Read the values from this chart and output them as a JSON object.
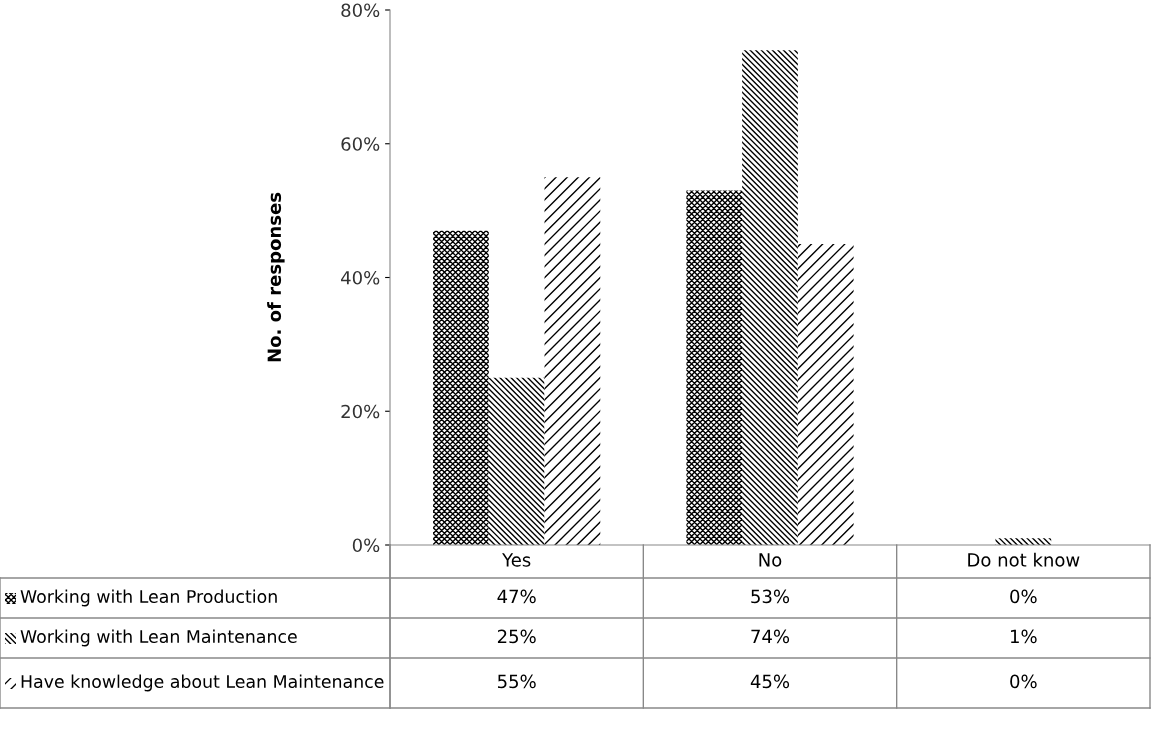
{
  "chart_data": {
    "type": "bar",
    "ylabel": "No. of responses",
    "categories": [
      "Yes",
      "No",
      "Do not know"
    ],
    "series": [
      {
        "name": "Working with Lean Production",
        "color": "#000000",
        "values": [
          47,
          53,
          0
        ],
        "value_labels": [
          "47%",
          "53%",
          "0%"
        ]
      },
      {
        "name": "Working with Lean Maintenance",
        "color": "#000000",
        "values": [
          25,
          74,
          1
        ],
        "value_labels": [
          "25%",
          "74%",
          "1%"
        ]
      },
      {
        "name": "Have knowledge about Lean Maintenance",
        "color": "#000000",
        "values": [
          55,
          45,
          0
        ],
        "value_labels": [
          "55%",
          "45%",
          "0%"
        ]
      }
    ],
    "ylim": [
      0,
      80
    ],
    "yticks": [
      {
        "value": 0,
        "label": "0%"
      },
      {
        "value": 20,
        "label": "20%"
      },
      {
        "value": 40,
        "label": "40%"
      },
      {
        "value": 60,
        "label": "60%"
      },
      {
        "value": 80,
        "label": "80%"
      }
    ],
    "grid": false,
    "legend": "bottom"
  }
}
